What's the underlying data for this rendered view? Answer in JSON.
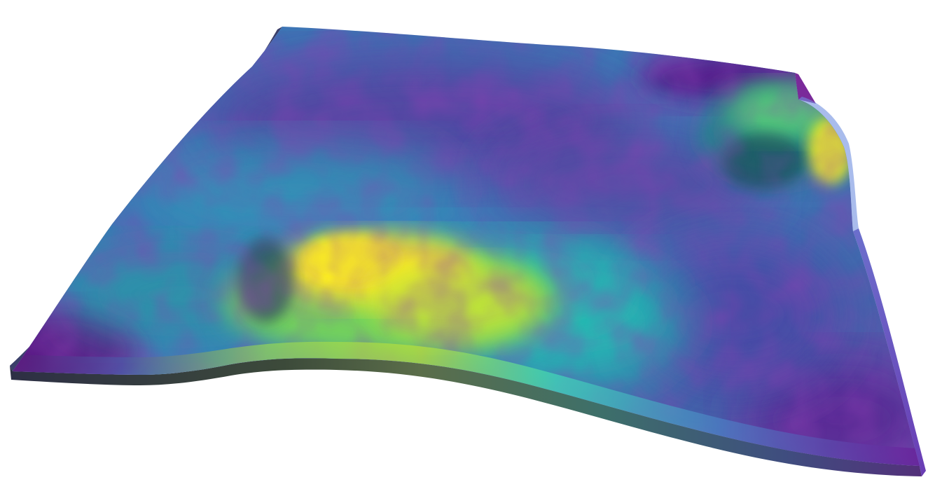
{
  "scene": {
    "type": "3d-surface-heightmap",
    "colormap": "viridis",
    "background": "#ffffff",
    "colors": {
      "low": "#440154",
      "low_mid": "#3b528b",
      "mid": "#21918c",
      "high_mid": "#5ec962",
      "high": "#fde725",
      "edge_shadow": "#1a1a2e"
    },
    "features": [
      {
        "name": "large-yellow-hill",
        "level": 1.0
      },
      {
        "name": "right-ridge-peak",
        "level": 0.85
      },
      {
        "name": "mottled-low-plain",
        "level": 0.3
      }
    ]
  }
}
